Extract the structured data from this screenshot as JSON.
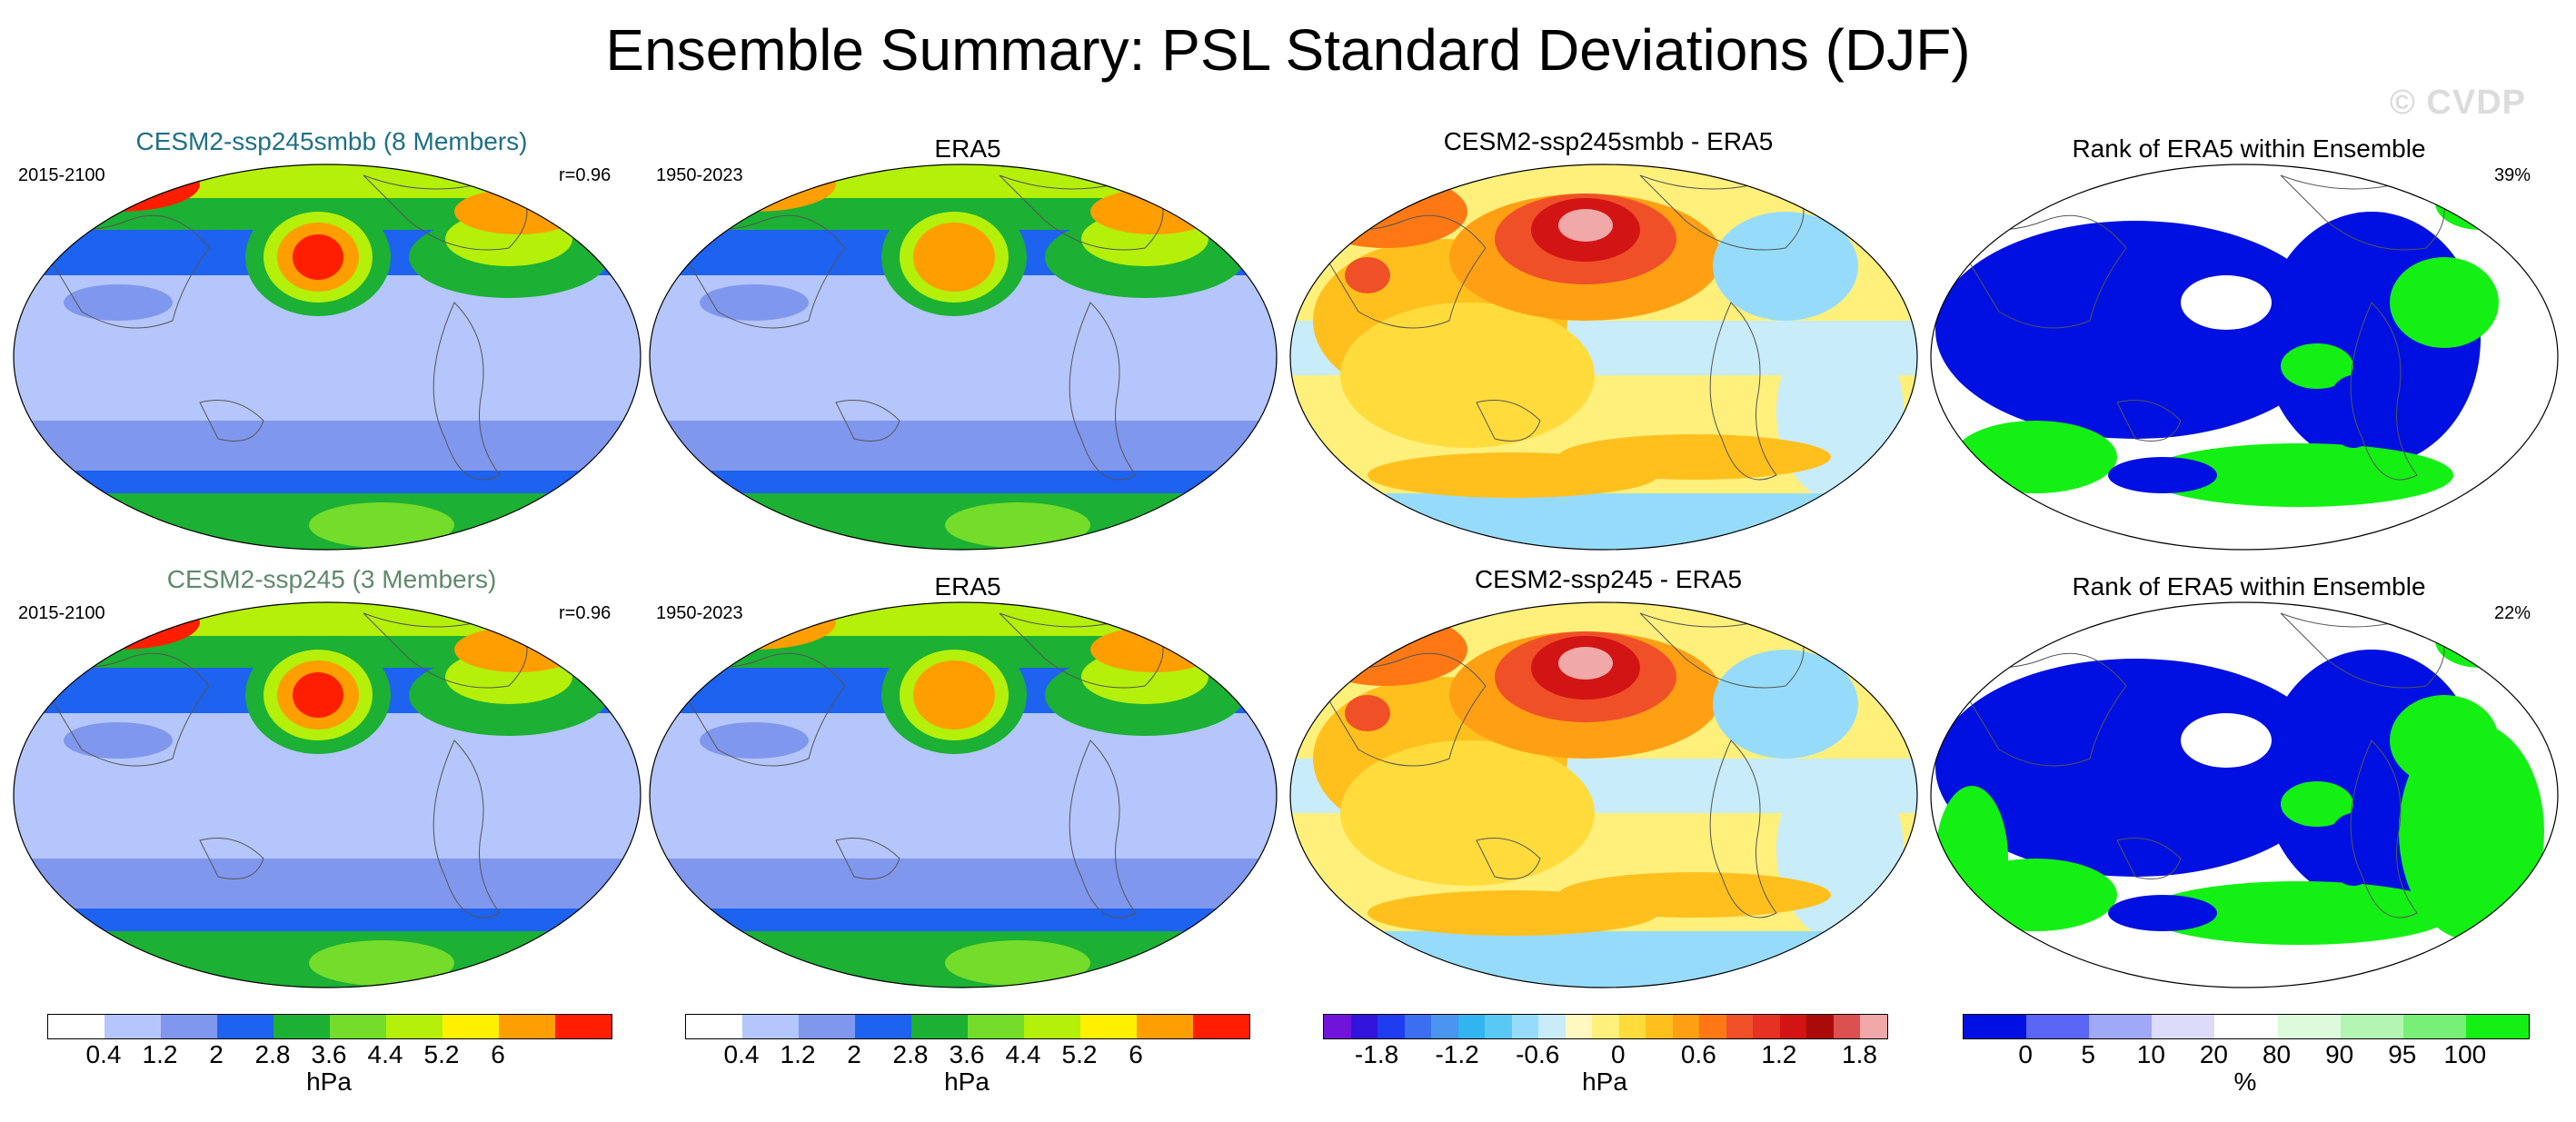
{
  "title": "Ensemble Summary: PSL Standard Deviations (DJF)",
  "watermark": "© CVDP",
  "rows": [
    {
      "model_title": "CESM2-ssp245smbb (8 Members)",
      "model_period": "2015-2100",
      "model_r": "r=0.96",
      "obs_title": "ERA5",
      "obs_period": "1950-2023",
      "diff_title": "CESM2-ssp245smbb - ERA5",
      "rank_title": "Rank of ERA5 within Ensemble",
      "rank_pct": "39%"
    },
    {
      "model_title": "CESM2-ssp245 (3 Members)",
      "model_period": "2015-2100",
      "model_r": "r=0.96",
      "obs_title": "ERA5",
      "obs_period": "1950-2023",
      "diff_title": "CESM2-ssp245 - ERA5",
      "rank_title": "Rank of ERA5 within Ensemble",
      "rank_pct": "22%"
    }
  ],
  "colors": {
    "model_title_row1": "#1f6f86",
    "model_title_row2": "#5f8a6a",
    "ocean_light": "#c7d4f4",
    "sd_levels": [
      "#ffffff",
      "#b4c6fb",
      "#8097ee",
      "#1e62f0",
      "#1cb034",
      "#74dc2a",
      "#b4f00a",
      "#fff100",
      "#ff9e00",
      "#ff1e00"
    ],
    "diff_levels": [
      "#7014dc",
      "#3214dc",
      "#1e3cf0",
      "#3c6ef0",
      "#4a95f0",
      "#32b4f0",
      "#5ac8f5",
      "#96dcfa",
      "#c8ecfa",
      "#fff8c0",
      "#fff07c",
      "#ffdc3c",
      "#ffc01e",
      "#ffa014",
      "#ff7814",
      "#f05028",
      "#e63222",
      "#d21414",
      "#aa0a0a",
      "#dc5050",
      "#f0a8a8"
    ],
    "rank_levels": [
      "#0010e0",
      "#5a64f5",
      "#a0a8f8",
      "#dcdcfa",
      "#ffffff",
      "#dcfadc",
      "#b4f5b4",
      "#78f078",
      "#14f014"
    ]
  },
  "colorbars": {
    "sd": {
      "ticks": [
        "0.4",
        "1.2",
        "2",
        "2.8",
        "3.6",
        "4.4",
        "5.2",
        "6"
      ],
      "unit": "hPa"
    },
    "diff": {
      "ticks": [
        "-1.8",
        "-1.2",
        "-0.6",
        "0",
        "0.6",
        "1.2",
        "1.8"
      ],
      "unit": "hPa"
    },
    "rank": {
      "ticks": [
        "0",
        "5",
        "10",
        "20",
        "80",
        "90",
        "95",
        "100"
      ],
      "unit": "%"
    }
  }
}
